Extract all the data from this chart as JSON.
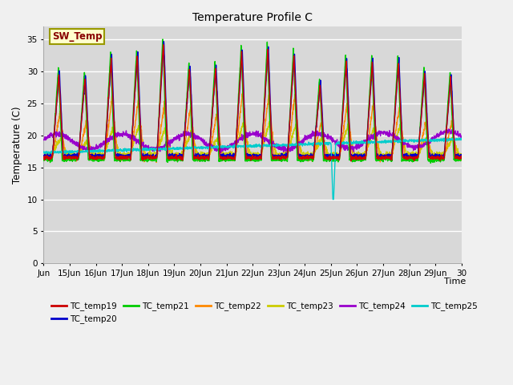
{
  "title": "Temperature Profile C",
  "xlabel": "Time",
  "ylabel": "Temperature (C)",
  "ylim": [
    0,
    37
  ],
  "yticks": [
    0,
    5,
    10,
    15,
    20,
    25,
    30,
    35
  ],
  "xtick_labels": [
    "Jun",
    "15Jun",
    "16Jun",
    "17Jun",
    "18Jun",
    "19Jun",
    "20Jun",
    "21Jun",
    "22Jun",
    "23Jun",
    "24Jun",
    "25Jun",
    "26Jun",
    "27Jun",
    "28Jun",
    "29Jun",
    "30"
  ],
  "legend_entries": [
    "TC_temp19",
    "TC_temp20",
    "TC_temp21",
    "TC_temp22",
    "TC_temp23",
    "TC_temp24",
    "TC_temp25"
  ],
  "line_colors": [
    "#cc0000",
    "#0000cc",
    "#00cc00",
    "#ff8800",
    "#cccc00",
    "#9900cc",
    "#00cccc"
  ],
  "sw_temp_label": "SW_Temp",
  "sw_temp_box_color": "#ffffcc",
  "sw_temp_text_color": "#880000",
  "background_color": "#d8d8d8",
  "plot_area_color": "#d8d8d8",
  "grid_color": "#ffffff",
  "figsize": [
    6.4,
    4.8
  ],
  "dpi": 100
}
